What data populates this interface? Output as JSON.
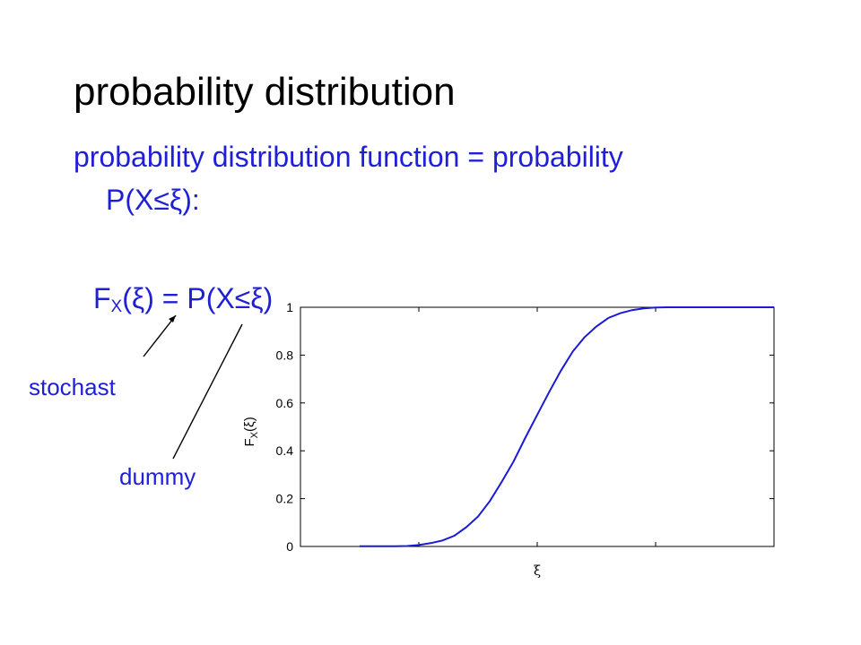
{
  "title": "probability distribution",
  "body": {
    "line1": "probability distribution function = probability",
    "line2": "P(X≤ξ):",
    "line3_f": "F",
    "line3_sub": "X",
    "line3_rest": "(ξ) = P(X≤ξ)"
  },
  "notes": {
    "stochast": "stochast",
    "dummy": "dummy"
  },
  "colors": {
    "text_blue": "#1f1fd6",
    "curve": "#1a1ad8",
    "black": "#000000"
  },
  "chart_data": {
    "type": "line",
    "xlabel": "ξ",
    "ylabel_main": "F",
    "ylabel_sub": "X",
    "ylabel_tail": "(ξ)",
    "xlim": [
      -4,
      4
    ],
    "ylim": [
      0,
      1
    ],
    "yticks": [
      0,
      0.2,
      0.4,
      0.6,
      0.8,
      1
    ],
    "ytick_labels": [
      "0",
      "0.2",
      "0.4",
      "0.6",
      "0.8",
      "1"
    ],
    "xticks": [
      -2,
      0,
      2
    ],
    "xtick_labels": [
      "",
      "",
      ""
    ],
    "grid": false,
    "series": [
      {
        "x": [
          -3,
          -2.8,
          -2.6,
          -2.4,
          -2.2,
          -2,
          -1.8,
          -1.6,
          -1.4,
          -1.2,
          -1,
          -0.8,
          -0.6,
          -0.4,
          -0.2,
          0,
          0.2,
          0.4,
          0.6,
          0.8,
          1,
          1.2,
          1.4,
          1.6,
          1.8,
          2,
          2.2,
          2.4,
          2.6,
          2.8,
          3,
          3.2,
          3.4,
          3.6,
          3.8,
          4
        ],
        "y": [
          0.001,
          0.001,
          0.001,
          0.001,
          0.002,
          0.006,
          0.014,
          0.025,
          0.045,
          0.08,
          0.125,
          0.19,
          0.27,
          0.355,
          0.455,
          0.55,
          0.645,
          0.735,
          0.815,
          0.875,
          0.92,
          0.955,
          0.975,
          0.988,
          0.995,
          0.999,
          1,
          1,
          1,
          1,
          1,
          1,
          1,
          1,
          1,
          1
        ]
      }
    ]
  }
}
